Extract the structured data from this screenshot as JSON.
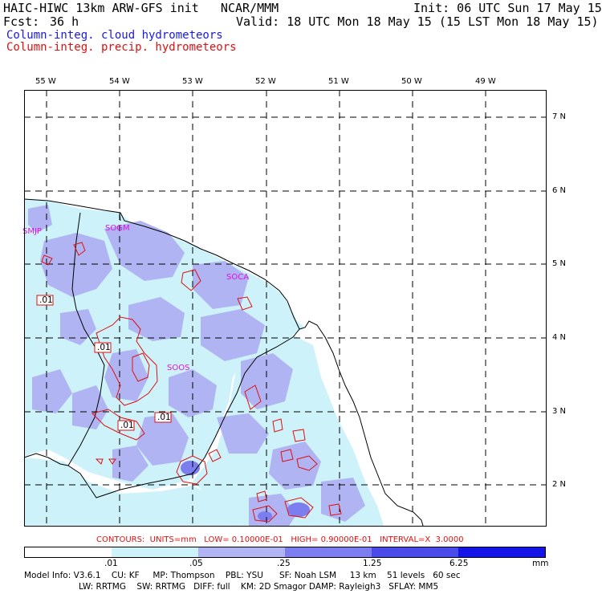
{
  "header": {
    "title_left": "HAIC-HIWC 13km ARW-GFS init   NCAR/MMM",
    "init": "Init: 06 UTC Sun 17 May 15",
    "fcst_label": "Fcst:",
    "fcst_value": "36 h",
    "valid": "Valid: 18 UTC Mon 18 May 15 (15 LST Mon 18 May 15)"
  },
  "legend": {
    "cloud": "Column-integ. cloud hydrometeors",
    "precip": "Column-integ. precip. hydrometeors"
  },
  "map": {
    "lon_labels": [
      "55 W",
      "54 W",
      "53 W",
      "52 W",
      "51 W",
      "50 W",
      "49 W"
    ],
    "lat_labels": [
      "7 N",
      "6 N",
      "5 N",
      "4 N",
      "3 N",
      "2 N"
    ],
    "stations": [
      "SMJP",
      "SOGM",
      "SOCA",
      "SOOS"
    ],
    "contour_labels": [
      ".01",
      ".01",
      ".01",
      ".01"
    ]
  },
  "contours_line": "CONTOURS:  UNITS=mm   LOW= 0.10000E-01   HIGH= 0.90000E-01   INTERVAL=X  3.0000",
  "colorbar": {
    "ticks": [
      ".01",
      ".05",
      ".25",
      "1.25",
      "6.25",
      "mm"
    ],
    "colors": [
      "#ffffff",
      "#cdf2fa",
      "#b0b4f2",
      "#7c7ef0",
      "#4a4ae8",
      "#1414e6"
    ]
  },
  "model_info": {
    "line1": "Model Info: V3.6.1    CU: KF     MP: Thompson    PBL: YSU      SF: Noah LSM     13 km    51 levels   60 sec",
    "line2": "LW: RRTMG    SW: RRTMG   DIFF: full    KM: 2D Smagor DAMP: Rayleigh3   SFLAY: MM5"
  }
}
